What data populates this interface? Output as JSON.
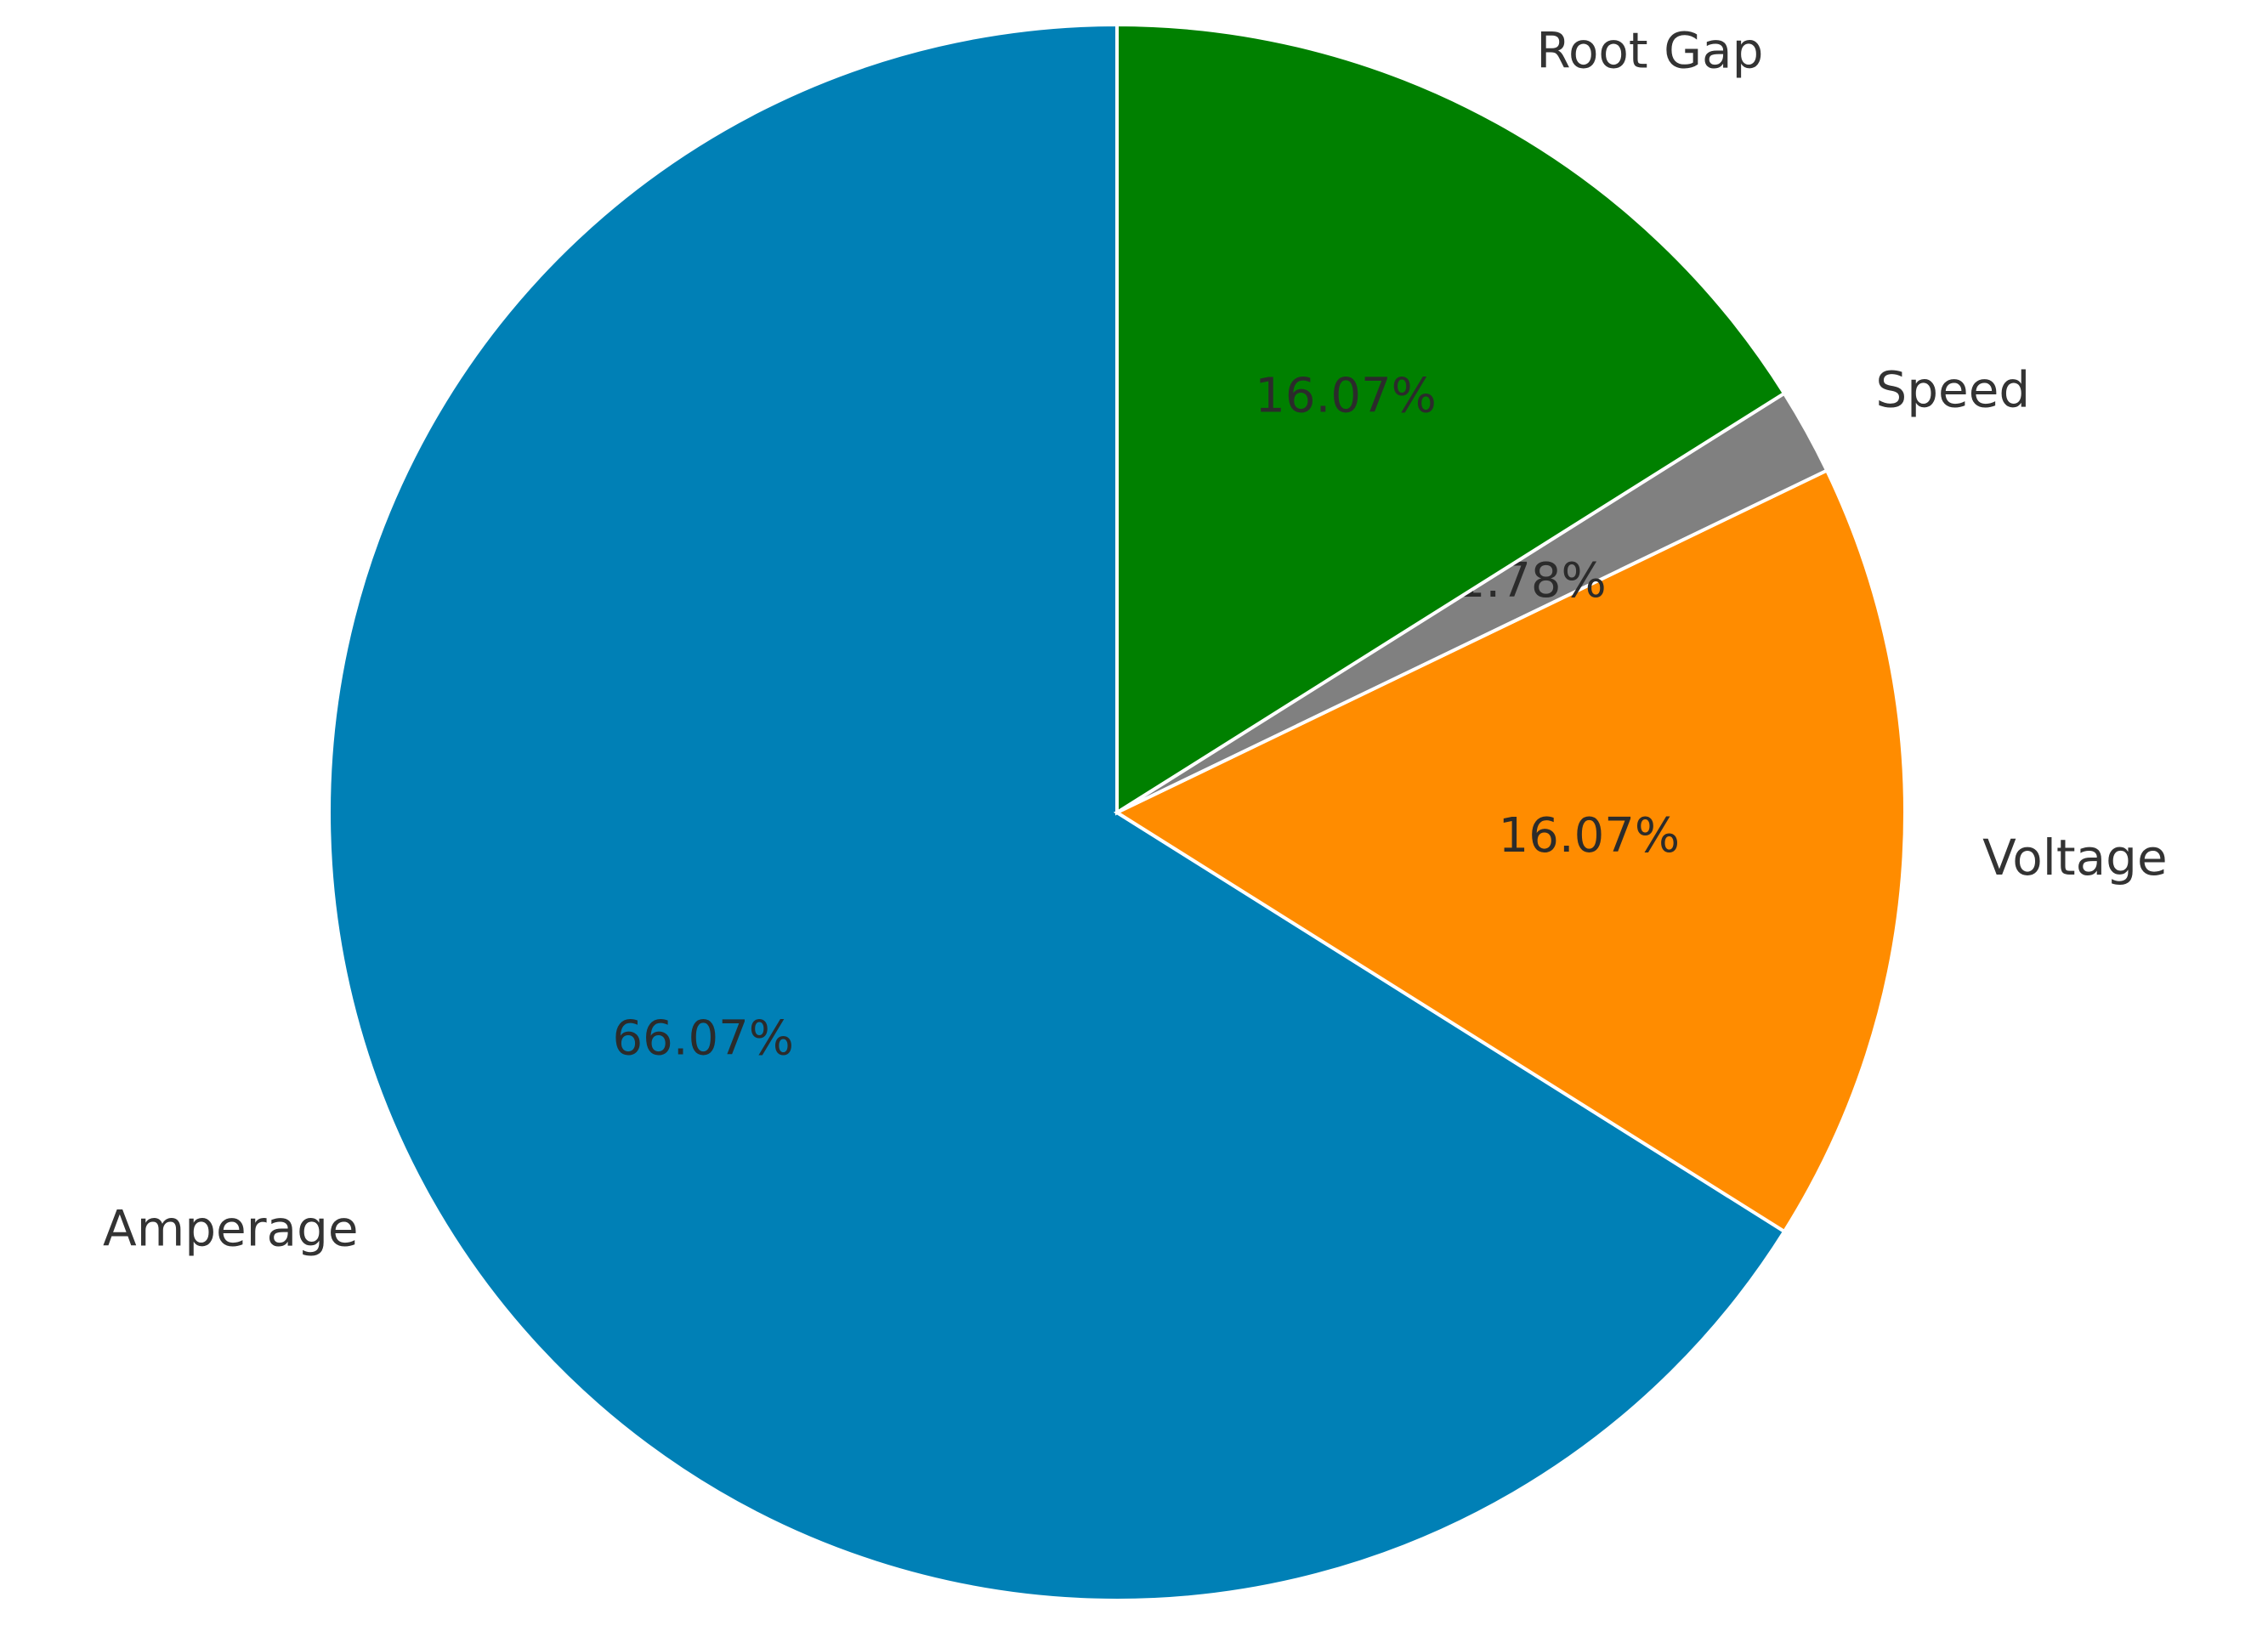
{
  "chart_data": {
    "type": "pie",
    "categories": [
      "Amperage",
      "Voltage",
      "Speed",
      "Root Gap"
    ],
    "values": [
      66.07,
      16.07,
      1.78,
      16.07
    ],
    "value_labels": [
      "66.07%",
      "16.07%",
      "1.78%",
      "16.07%"
    ],
    "colors": [
      "#0080b6",
      "#ff8c00",
      "#808080",
      "#008000"
    ]
  }
}
